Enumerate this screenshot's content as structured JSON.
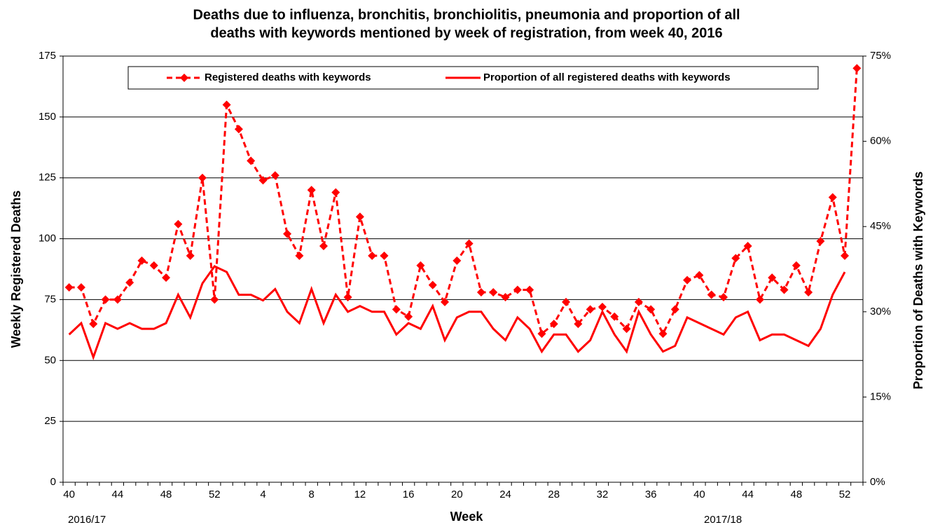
{
  "chart_data": {
    "type": "line",
    "title": [
      "Deaths due to influenza, bronchitis, bronchiolitis, pneumonia and proportion of all",
      "deaths with keywords mentioned by week of registration, from week 40, 2016"
    ],
    "x_label": "Week",
    "y_label": "Weekly Registered Deaths",
    "y2_label": "Proportion of Deaths with Keywords",
    "annotations": [
      "2016/17",
      "2017/18"
    ],
    "categories": [
      "40",
      null,
      null,
      null,
      "44",
      null,
      null,
      null,
      "48",
      null,
      null,
      null,
      "52",
      null,
      null,
      null,
      "4",
      null,
      null,
      null,
      "8",
      null,
      null,
      null,
      "12",
      null,
      null,
      null,
      "16",
      null,
      null,
      null,
      "20",
      null,
      null,
      null,
      "24",
      null,
      null,
      null,
      "28",
      null,
      null,
      null,
      "32",
      null,
      null,
      null,
      "36",
      null,
      null,
      null,
      "40",
      null,
      null,
      null,
      "44",
      null,
      null,
      null,
      "48",
      null,
      null,
      null,
      "52",
      null
    ],
    "series": [
      {
        "name": "Registered deaths with keywords",
        "color": "#ff0000",
        "style": "dashed",
        "marker": "diamond",
        "values": [
          80,
          80,
          65,
          75,
          75,
          82,
          91,
          89,
          84,
          106,
          93,
          125,
          75,
          155,
          145,
          132,
          124,
          126,
          102,
          93,
          120,
          97,
          119,
          76,
          109,
          93,
          93,
          71,
          68,
          89,
          81,
          74,
          91,
          98,
          78,
          78,
          76,
          79,
          79,
          61,
          65,
          74,
          65,
          71,
          72,
          68,
          63,
          74,
          71,
          61,
          71,
          83,
          85,
          77,
          76,
          92,
          97,
          75,
          84,
          79,
          89,
          78,
          99,
          117,
          93,
          170
        ]
      },
      {
        "name": "Proportion of all registered deaths with keywords",
        "color": "#ff0000",
        "style": "solid",
        "axis": "y2",
        "values": [
          26,
          28,
          22,
          28,
          27,
          28,
          27,
          27,
          28,
          33,
          29,
          35,
          38,
          37,
          33,
          33,
          32,
          34,
          30,
          28,
          34,
          28,
          33,
          30,
          31,
          30,
          30,
          26,
          28,
          27,
          31,
          25,
          29,
          30,
          30,
          27,
          25,
          29,
          27,
          23,
          26,
          26,
          23,
          25,
          30,
          26,
          23,
          30,
          26,
          23,
          24,
          29,
          28,
          27,
          26,
          29,
          30,
          25,
          26,
          26,
          25,
          24,
          27,
          33,
          37,
          null
        ]
      }
    ],
    "ylim": [
      0,
      175
    ],
    "yticks": [
      0,
      25,
      50,
      75,
      100,
      125,
      150,
      175
    ],
    "y2lim": [
      0,
      75
    ],
    "y2ticks": [
      {
        "value": 0,
        "label": "0%"
      },
      {
        "value": 15,
        "label": "15%"
      },
      {
        "value": 30,
        "label": "30%"
      },
      {
        "value": 45,
        "label": "45%"
      },
      {
        "value": 60,
        "label": "60%"
      },
      {
        "value": 75,
        "label": "75%"
      }
    ],
    "grid": true,
    "legend": "top"
  }
}
